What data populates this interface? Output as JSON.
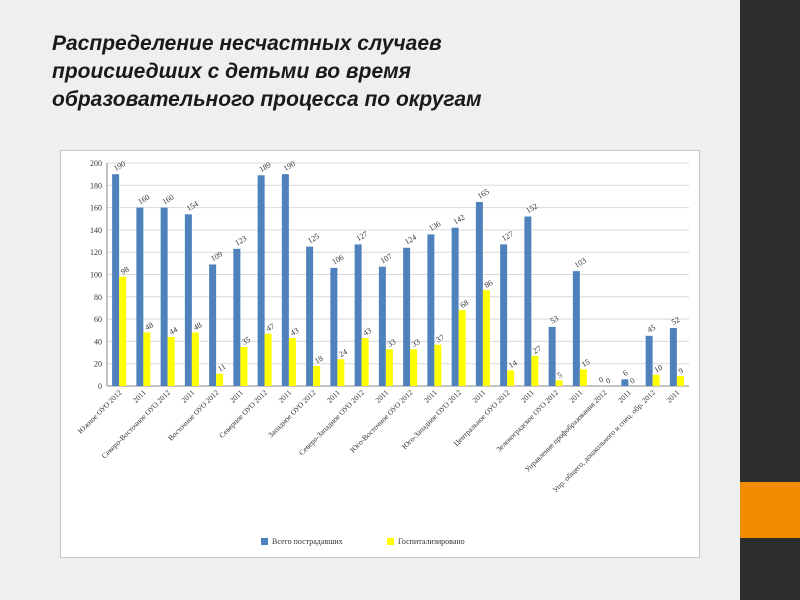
{
  "slide": {
    "title_lines": [
      "Распределение несчастных случаев",
      "происшедших с детьми во время",
      "образовательного процесса по округам"
    ],
    "colors": {
      "background": "#efefef",
      "right_bar": "#2c2c2c",
      "accent": "#f28c00"
    }
  },
  "chart_data": {
    "type": "bar",
    "categories": [
      "Южное ОУО 2012",
      "2011",
      "Северо-Восточное ОУО 2012",
      "2011",
      "Восточное ОУО 2012",
      "2011",
      "Северное ОУО 2012",
      "2011",
      "Западное ОУО 2012",
      "2011",
      "Северо-Западное ОУО 2012",
      "2011",
      "Юго-Восточное ОУО 2012",
      "2011",
      "Юго-Западное ОУО 2012",
      "2011",
      "Центральное ОУО 2012",
      "2011",
      "Зеленоградское ОУО 2012",
      "2011",
      "Управление профобразования 2012",
      "2011",
      "Упр. общего, дошкольного и спец. обр. 2012",
      "2011"
    ],
    "series": [
      {
        "name": "Всего пострадавших",
        "color": "#4f81bd",
        "values": [
          190,
          160,
          160,
          154,
          109,
          123,
          189,
          190,
          125,
          106,
          127,
          107,
          124,
          136,
          142,
          165,
          127,
          152,
          53,
          103,
          0,
          6,
          45,
          52
        ],
        "labels": [
          "190",
          "160",
          "160",
          "154",
          "109",
          "123",
          "189",
          "190",
          "125",
          "106",
          "127",
          "107",
          "124",
          "136",
          "142",
          "165",
          "127",
          "152",
          "53",
          "103",
          "0",
          "6",
          "45",
          "52"
        ]
      },
      {
        "name": "Госпитализировано",
        "color": "#ffff00",
        "values": [
          98,
          48,
          44,
          48,
          11,
          35,
          47,
          43,
          18,
          24,
          43,
          33,
          33,
          37,
          68,
          86,
          14,
          27,
          5,
          15,
          0,
          0,
          10,
          9
        ],
        "labels": [
          "98",
          "48",
          "44",
          "48",
          "11",
          "35",
          "47",
          "43",
          "18",
          "24",
          "43",
          "33",
          "33",
          "37",
          "68",
          "86",
          "14",
          "27",
          "5",
          "15",
          "0",
          "0",
          "10",
          "9"
        ]
      }
    ],
    "ylim": [
      0,
      200
    ],
    "yticks": [
      0,
      20,
      40,
      60,
      80,
      100,
      120,
      140,
      160,
      180,
      200
    ],
    "grid": true,
    "legend_position": "bottom"
  }
}
